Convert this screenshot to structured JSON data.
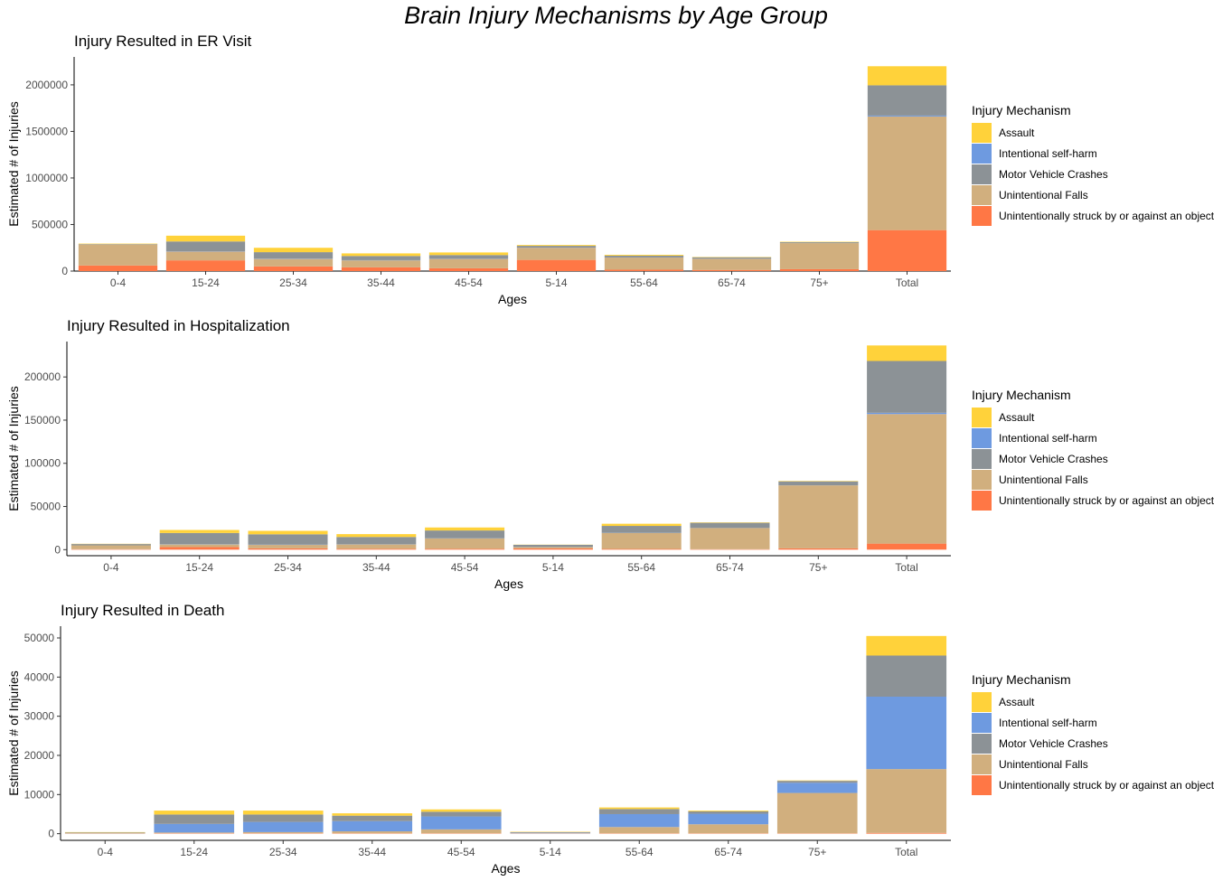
{
  "title": "Brain Injury Mechanisms by Age Group",
  "legend": {
    "title": "Injury Mechanism",
    "items": [
      {
        "label": "Assault",
        "color": "#FFD23A"
      },
      {
        "label": "Intentional self-harm",
        "color": "#6E9AE0"
      },
      {
        "label": "Motor Vehicle Crashes",
        "color": "#8C9296"
      },
      {
        "label": "Unintentional Falls",
        "color": "#D1AF7E"
      },
      {
        "label": "Unintentionally struck by or against an object",
        "color": "#FF7745"
      }
    ]
  },
  "chart_data": [
    {
      "type": "bar",
      "stacked": true,
      "title": "Injury Resulted in ER Visit",
      "xlabel": "Ages",
      "ylabel": "Estimated # of Injuries",
      "ylim": [
        0,
        2300000
      ],
      "yticks": [
        "0",
        "500000",
        "1000000",
        "1500000",
        "2000000"
      ],
      "categories": [
        "0-4",
        "15-24",
        "25-34",
        "35-44",
        "45-54",
        "5-14",
        "55-64",
        "65-74",
        "75+",
        "Total"
      ],
      "series": [
        {
          "name": "Unintentionally struck by or against an object",
          "values": [
            60000,
            115000,
            50000,
            40000,
            30000,
            120000,
            15000,
            12000,
            20000,
            440000
          ]
        },
        {
          "name": "Unintentional Falls",
          "values": [
            225000,
            95000,
            80000,
            75000,
            100000,
            130000,
            130000,
            120000,
            280000,
            1220000
          ]
        },
        {
          "name": "Intentional self-harm",
          "values": [
            0,
            3000,
            3000,
            2000,
            2000,
            1000,
            1000,
            1000,
            0,
            10000
          ]
        },
        {
          "name": "Motor Vehicle Crashes",
          "values": [
            5000,
            105000,
            70000,
            45000,
            40000,
            20000,
            20000,
            15000,
            10000,
            325000
          ]
        },
        {
          "name": "Assault",
          "values": [
            5000,
            62000,
            47000,
            28000,
            28000,
            9000,
            9000,
            4000,
            5000,
            205000
          ]
        }
      ]
    },
    {
      "type": "bar",
      "stacked": true,
      "title": "Injury Resulted in Hospitalization",
      "xlabel": "Ages",
      "ylabel": "Estimated # of Injuries",
      "ylim": [
        -7000,
        241000
      ],
      "yticks": [
        "0",
        "50000",
        "100000",
        "150000",
        "200000"
      ],
      "categories": [
        "0-4",
        "15-24",
        "25-34",
        "35-44",
        "45-54",
        "5-14",
        "55-64",
        "65-74",
        "75+",
        "Total"
      ],
      "series": [
        {
          "name": "Unintentionally struck by or against an object",
          "values": [
            500,
            3000,
            1500,
            1000,
            1000,
            1500,
            800,
            500,
            1500,
            7000
          ]
        },
        {
          "name": "Unintentional Falls",
          "values": [
            4500,
            3000,
            4000,
            5000,
            12000,
            1500,
            18500,
            24500,
            73000,
            150000
          ]
        },
        {
          "name": "Intentional self-harm",
          "values": [
            0,
            300,
            300,
            200,
            200,
            100,
            200,
            100,
            100,
            1500
          ]
        },
        {
          "name": "Motor Vehicle Crashes",
          "values": [
            1500,
            13000,
            12000,
            8500,
            9000,
            2500,
            8000,
            6000,
            4500,
            60000
          ]
        },
        {
          "name": "Assault",
          "values": [
            300,
            3500,
            4000,
            3300,
            3500,
            200,
            2500,
            500,
            500,
            18000
          ]
        }
      ]
    },
    {
      "type": "bar",
      "stacked": true,
      "title": "Injury Resulted in Death",
      "xlabel": "Ages",
      "ylabel": "Estimated # of Injuries",
      "ylim": [
        -1700,
        53000
      ],
      "yticks": [
        "0",
        "10000",
        "20000",
        "30000",
        "40000",
        "50000"
      ],
      "categories": [
        "0-4",
        "15-24",
        "25-34",
        "35-44",
        "45-54",
        "5-14",
        "55-64",
        "65-74",
        "75+",
        "Total"
      ],
      "series": [
        {
          "name": "Unintentionally struck by or against an object",
          "values": [
            50,
            100,
            100,
            100,
            100,
            50,
            100,
            100,
            100,
            200
          ]
        },
        {
          "name": "Unintentional Falls",
          "values": [
            50,
            200,
            300,
            500,
            1000,
            50,
            1600,
            2300,
            10300,
            16300
          ]
        },
        {
          "name": "Intentional self-harm",
          "values": [
            0,
            2200,
            2600,
            2600,
            3300,
            100,
            3300,
            2700,
            2600,
            18500
          ]
        },
        {
          "name": "Motor Vehicle Crashes",
          "values": [
            200,
            2400,
            1900,
            1400,
            1200,
            200,
            1300,
            600,
            500,
            10500
          ]
        },
        {
          "name": "Assault",
          "values": [
            100,
            1000,
            1000,
            600,
            600,
            100,
            400,
            200,
            100,
            5000
          ]
        }
      ]
    }
  ]
}
